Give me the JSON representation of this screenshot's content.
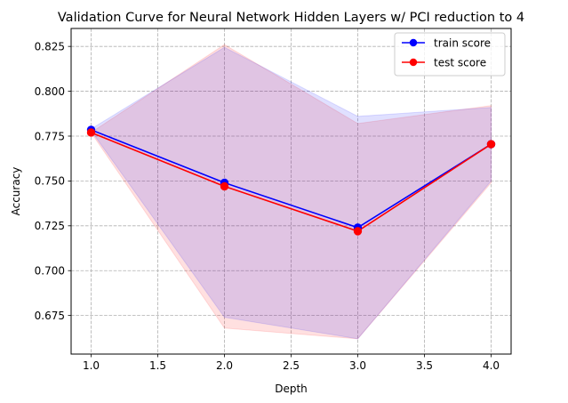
{
  "chart_data": {
    "type": "line",
    "title": "Validation Curve for Neural Network Hidden Layers w/ PCI reduction to 4",
    "xlabel": "Depth",
    "ylabel": "Accuracy",
    "x": [
      1.0,
      2.0,
      3.0,
      4.0
    ],
    "xlim": [
      0.85,
      4.15
    ],
    "ylim": [
      0.6535,
      0.835
    ],
    "x_ticks": [
      "1.0",
      "1.5",
      "2.0",
      "2.5",
      "3.0",
      "3.5",
      "4.0"
    ],
    "x_tick_values": [
      1.0,
      1.5,
      2.0,
      2.5,
      3.0,
      3.5,
      4.0
    ],
    "y_ticks": [
      "0.675",
      "0.700",
      "0.725",
      "0.750",
      "0.775",
      "0.800",
      "0.825"
    ],
    "y_tick_values": [
      0.675,
      0.7,
      0.725,
      0.75,
      0.775,
      0.8,
      0.825
    ],
    "grid": true,
    "legend_position": "top-right",
    "series": [
      {
        "name": "train score",
        "color": "#0000ff",
        "band_color": "#0000ff",
        "values": [
          0.7785,
          0.749,
          0.724,
          0.7705
        ],
        "upper": [
          0.779,
          0.8245,
          0.786,
          0.791
        ],
        "lower": [
          0.778,
          0.674,
          0.662,
          0.75
        ]
      },
      {
        "name": "test score",
        "color": "#ff0000",
        "band_color": "#ff0000",
        "values": [
          0.777,
          0.747,
          0.722,
          0.7705
        ],
        "upper": [
          0.777,
          0.826,
          0.782,
          0.792
        ],
        "lower": [
          0.777,
          0.668,
          0.662,
          0.749
        ]
      }
    ]
  }
}
